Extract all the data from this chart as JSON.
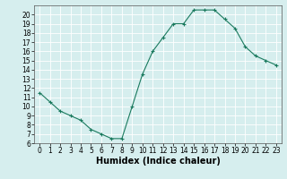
{
  "x": [
    0,
    1,
    2,
    3,
    4,
    5,
    6,
    7,
    8,
    9,
    10,
    11,
    12,
    13,
    14,
    15,
    16,
    17,
    18,
    19,
    20,
    21,
    22,
    23
  ],
  "y": [
    11.5,
    10.5,
    9.5,
    9.0,
    8.5,
    7.5,
    7.0,
    6.5,
    6.5,
    10.0,
    13.5,
    16.0,
    17.5,
    19.0,
    19.0,
    20.5,
    20.5,
    20.5,
    19.5,
    18.5,
    16.5,
    15.5,
    15.0,
    14.5
  ],
  "line_color": "#1a7a5e",
  "marker": "+",
  "marker_size": 3,
  "marker_linewidth": 0.8,
  "line_width": 0.8,
  "bg_color": "#d6eeee",
  "grid_color": "#ffffff",
  "xlabel": "Humidex (Indice chaleur)",
  "ylim": [
    6,
    21
  ],
  "xlim": [
    -0.5,
    23.5
  ],
  "yticks": [
    6,
    7,
    8,
    9,
    10,
    11,
    12,
    13,
    14,
    15,
    16,
    17,
    18,
    19,
    20
  ],
  "xticks": [
    0,
    1,
    2,
    3,
    4,
    5,
    6,
    7,
    8,
    9,
    10,
    11,
    12,
    13,
    14,
    15,
    16,
    17,
    18,
    19,
    20,
    21,
    22,
    23
  ],
  "tick_labelsize": 5.5,
  "xlabel_fontsize": 7,
  "xlabel_fontweight": "bold",
  "spine_color": "#555555"
}
